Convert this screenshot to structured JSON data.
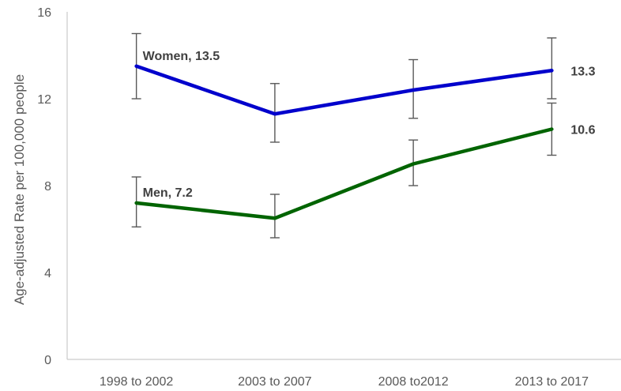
{
  "chart_data": {
    "type": "line",
    "title": "",
    "xlabel": "",
    "ylabel": "Age-adjusted Rate per 100,000 people",
    "ylim": [
      0,
      16
    ],
    "yticks": [
      0,
      4,
      8,
      12,
      16
    ],
    "categories": [
      "1998 to 2002",
      "2003 to 2007",
      "2008 to2012",
      "2013 to 2017"
    ],
    "grid": false,
    "legend": "none",
    "series": [
      {
        "key": "women",
        "color": "#0000cc",
        "values": [
          13.5,
          11.3,
          12.4,
          13.3
        ],
        "err_low": [
          12.0,
          10.0,
          11.1,
          12.0
        ],
        "err_high": [
          15.0,
          12.7,
          13.8,
          14.8
        ],
        "labels": [
          "Women, 13.5",
          "",
          "",
          "13.3"
        ]
      },
      {
        "key": "men",
        "color": "#006400",
        "values": [
          7.2,
          6.5,
          9.0,
          10.6
        ],
        "err_low": [
          6.1,
          5.6,
          8.0,
          9.4
        ],
        "err_high": [
          8.4,
          7.6,
          10.1,
          11.8
        ],
        "labels": [
          "Men, 7.2",
          "",
          "",
          "10.6"
        ]
      }
    ]
  }
}
